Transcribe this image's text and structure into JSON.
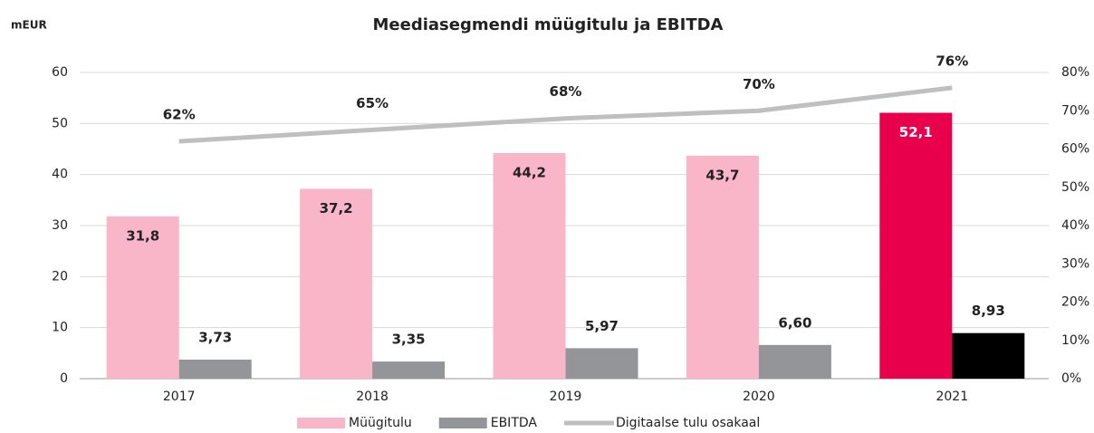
{
  "chart_data": {
    "type": "bar",
    "title": "Meediasegmendi müügitulu ja EBITDA",
    "y_label": "mEUR",
    "categories": [
      "2017",
      "2018",
      "2019",
      "2020",
      "2021"
    ],
    "series": [
      {
        "name": "Müügitulu",
        "color": "#f9b6c9",
        "colors": [
          "#f9b6c9",
          "#f9b6c9",
          "#f9b6c9",
          "#f9b6c9",
          "#e8004c"
        ],
        "values": [
          31.8,
          37.2,
          44.2,
          43.7,
          52.1
        ],
        "value_labels": [
          "31,8",
          "37,2",
          "44,2",
          "43,7",
          "52,1"
        ]
      },
      {
        "name": "EBITDA",
        "color": "#939598",
        "colors": [
          "#939598",
          "#939598",
          "#939598",
          "#939598",
          "#000000"
        ],
        "values": [
          3.73,
          3.35,
          5.97,
          6.6,
          8.93
        ],
        "value_labels": [
          "3,73",
          "3,35",
          "5,97",
          "6,60",
          "8,93"
        ]
      },
      {
        "name": "Digitaalse tulu osakaal",
        "type": "line",
        "axis": "y2",
        "color": "#bfbfbf",
        "values": [
          62,
          65,
          68,
          70,
          76
        ],
        "value_labels": [
          "62%",
          "65%",
          "68%",
          "70%",
          "76%"
        ]
      }
    ],
    "ylim": [
      0,
      60
    ],
    "yticks": [
      0,
      10,
      20,
      30,
      40,
      50,
      60
    ],
    "y2lim": [
      0,
      80
    ],
    "y2ticks": [
      {
        "value": 0,
        "label": "0%"
      },
      {
        "value": 10,
        "label": "10%"
      },
      {
        "value": 20,
        "label": "20%"
      },
      {
        "value": 30,
        "label": "30%"
      },
      {
        "value": 40,
        "label": "40%"
      },
      {
        "value": 50,
        "label": "50%"
      },
      {
        "value": 60,
        "label": "60%"
      },
      {
        "value": 70,
        "label": "70%"
      },
      {
        "value": 80,
        "label": "80%"
      }
    ],
    "grid": true,
    "legend": "bottom"
  }
}
